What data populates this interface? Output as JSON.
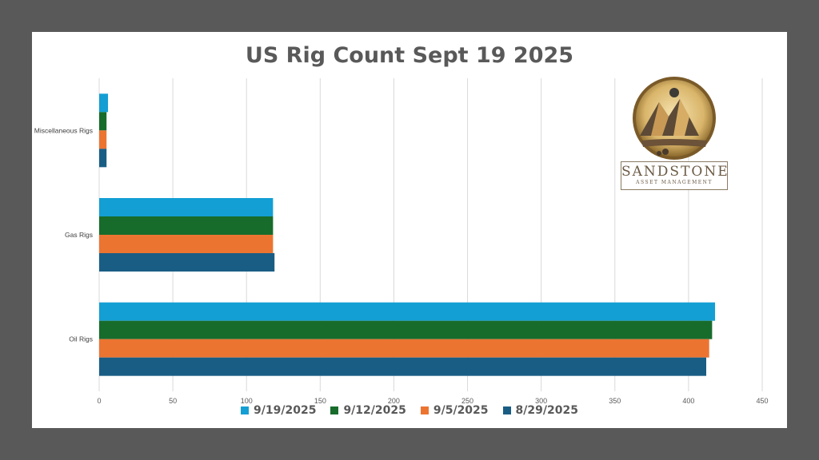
{
  "chart_data": {
    "type": "bar",
    "orientation": "horizontal",
    "title": "US Rig Count Sept 19 2025",
    "categories": [
      "Miscellaneous Rigs",
      "Gas Rigs",
      "Oil Rigs"
    ],
    "series": [
      {
        "name": "9/19/2025",
        "color": "#139fd4",
        "values": [
          6,
          118,
          418
        ]
      },
      {
        "name": "9/12/2025",
        "color": "#176c2b",
        "values": [
          5,
          118,
          416
        ]
      },
      {
        "name": "9/5/2025",
        "color": "#ec7431",
        "values": [
          5,
          118,
          414
        ]
      },
      {
        "name": "8/29/2025",
        "color": "#195d84",
        "values": [
          5,
          119,
          412
        ]
      }
    ],
    "xticks": [
      0,
      50,
      100,
      150,
      200,
      250,
      300,
      350,
      400,
      450
    ],
    "xlim": [
      0,
      450
    ],
    "grid": true,
    "legend": "bottom"
  },
  "logo": {
    "name": "SANDSTONE",
    "tagline": "ASSET MANAGEMENT"
  }
}
